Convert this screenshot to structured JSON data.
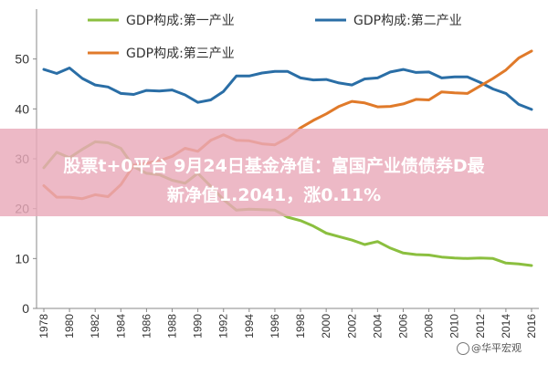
{
  "banner": {
    "line1": "股票t+0平台 9月24日基金净值：富国产业债债券D最",
    "line2": "新净值1.2041，涨0.11%"
  },
  "watermark": "@华平宏观",
  "colors": {
    "series1": "#8bbf3f",
    "series2": "#2a6ea6",
    "series3": "#e07a2a",
    "axis": "#888888"
  },
  "chart_data": {
    "type": "line",
    "xlim": [
      1978,
      2016
    ],
    "ylim": [
      0,
      60
    ],
    "y_ticks": [
      0,
      10,
      20,
      30,
      40,
      50
    ],
    "x_ticks": [
      1978,
      1980,
      1982,
      1984,
      1986,
      1988,
      1990,
      1992,
      1994,
      1996,
      1998,
      2000,
      2002,
      2004,
      2006,
      2008,
      2010,
      2012,
      2014,
      2016
    ],
    "grid": false,
    "legend": "top",
    "x": [
      1978,
      1979,
      1980,
      1981,
      1982,
      1983,
      1984,
      1985,
      1986,
      1987,
      1988,
      1989,
      1990,
      1991,
      1992,
      1993,
      1994,
      1995,
      1996,
      1997,
      1998,
      1999,
      2000,
      2001,
      2002,
      2003,
      2004,
      2005,
      2006,
      2007,
      2008,
      2009,
      2010,
      2011,
      2012,
      2013,
      2014,
      2015,
      2016
    ],
    "series": [
      {
        "name": "GDP构成:第一产业",
        "color_key": "series1",
        "values": [
          28.2,
          31.3,
          30.2,
          31.9,
          33.4,
          33.2,
          32.1,
          28.4,
          27.1,
          26.8,
          25.7,
          25.1,
          27.1,
          24.5,
          21.8,
          19.7,
          19.9,
          19.8,
          19.7,
          18.3,
          17.6,
          16.5,
          15.1,
          14.4,
          13.7,
          12.8,
          13.4,
          12.1,
          11.1,
          10.8,
          10.7,
          10.3,
          10.1,
          10.0,
          10.1,
          10.0,
          9.1,
          8.9,
          8.6
        ]
      },
      {
        "name": "GDP构成:第二产业",
        "color_key": "series2",
        "values": [
          47.9,
          47.1,
          48.2,
          46.1,
          44.8,
          44.4,
          43.1,
          42.9,
          43.7,
          43.6,
          43.8,
          42.8,
          41.3,
          41.8,
          43.5,
          46.6,
          46.6,
          47.2,
          47.5,
          47.5,
          46.2,
          45.8,
          45.9,
          45.2,
          44.8,
          46.0,
          46.2,
          47.4,
          47.9,
          47.3,
          47.4,
          46.2,
          46.4,
          46.4,
          45.3,
          44.0,
          43.1,
          40.9,
          39.9
        ]
      },
      {
        "name": "GDP构成:第三产业",
        "color_key": "series3",
        "values": [
          24.6,
          22.3,
          22.3,
          22.0,
          22.8,
          22.4,
          24.8,
          28.7,
          29.1,
          29.6,
          30.5,
          32.1,
          31.5,
          33.7,
          34.8,
          33.7,
          33.6,
          33.0,
          32.8,
          34.2,
          36.2,
          37.7,
          39.0,
          40.5,
          41.5,
          41.2,
          40.4,
          40.5,
          41.0,
          41.9,
          41.8,
          43.4,
          43.2,
          43.1,
          44.6,
          46.1,
          47.8,
          50.2,
          51.6
        ]
      }
    ]
  }
}
